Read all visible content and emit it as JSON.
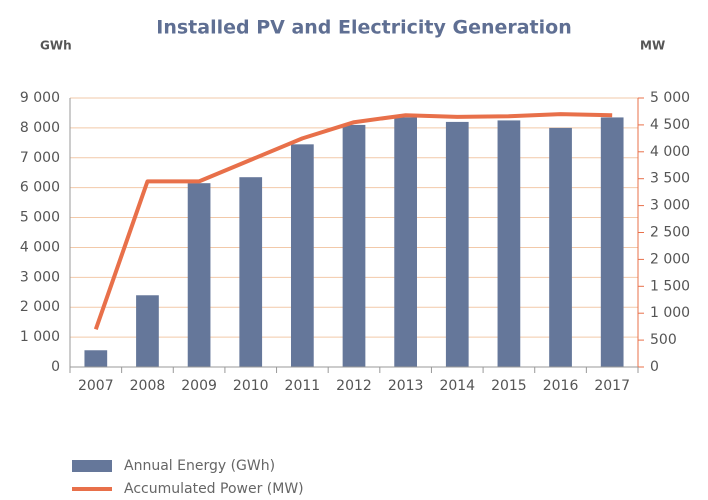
{
  "chart_data": {
    "type": "combo",
    "title": "Installed PV and Electricity Generation",
    "y_label": "GWh",
    "y2_label": "MW",
    "categories": [
      "2007",
      "2008",
      "2009",
      "2010",
      "2011",
      "2012",
      "2013",
      "2014",
      "2015",
      "2016",
      "2017"
    ],
    "series": [
      {
        "name": "Annual Energy (GWh)",
        "type": "bar",
        "color": "#65779a",
        "values": [
          560,
          2400,
          6150,
          6350,
          7450,
          8100,
          8350,
          8200,
          8250,
          8000,
          8350
        ]
      },
      {
        "name": "Accumulated Power (MW)",
        "type": "line",
        "axis": "y2",
        "color": "#e8704a",
        "values": [
          700,
          3450,
          3450,
          3850,
          4250,
          4550,
          4680,
          4650,
          4660,
          4700,
          4680
        ]
      }
    ],
    "ylim": [
      0,
      9000
    ],
    "yticks": [
      0,
      {
        "value": 1000,
        "label": "1 000"
      },
      {
        "value": 2000,
        "label": "2 000"
      },
      {
        "value": 3000,
        "label": "3 000"
      },
      {
        "value": 4000,
        "label": "4 000"
      },
      {
        "value": 5000,
        "label": "5 000"
      },
      {
        "value": 6000,
        "label": "6 000"
      },
      {
        "value": 7000,
        "label": "7 000"
      },
      {
        "value": 8000,
        "label": "8 000"
      },
      {
        "value": 9000,
        "label": "9 000"
      }
    ],
    "y2lim": [
      0,
      5000
    ],
    "y2ticks": [
      0,
      500,
      {
        "value": 1000,
        "label": "1 000"
      },
      {
        "value": 1500,
        "label": "1 500"
      },
      {
        "value": 2000,
        "label": "2 000"
      },
      {
        "value": 2500,
        "label": "2 500"
      },
      {
        "value": 3000,
        "label": "3 000"
      },
      {
        "value": 3500,
        "label": "3 500"
      },
      {
        "value": 4000,
        "label": "4 000"
      },
      {
        "value": 4500,
        "label": "4 500"
      },
      {
        "value": 5000,
        "label": "5 000"
      }
    ],
    "grid": true,
    "grid_color": "#f2c9a9",
    "legend": "bottom-left"
  }
}
